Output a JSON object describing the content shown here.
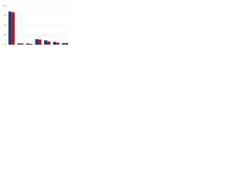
{
  "chart_data": {
    "type": "bar",
    "categories": [
      null,
      null,
      null,
      null,
      null,
      null,
      null
    ],
    "series": [
      {
        "color": "#1c3f7a",
        "values": [
          85,
          3,
          3,
          14,
          11,
          7,
          4
        ]
      },
      {
        "color": "#b3151f",
        "values": [
          83,
          3,
          2,
          13,
          8,
          5,
          4
        ]
      }
    ],
    "ylim": [
      0,
      100
    ],
    "yticks": [
      0,
      25,
      50,
      75,
      100
    ],
    "grid": true
  }
}
